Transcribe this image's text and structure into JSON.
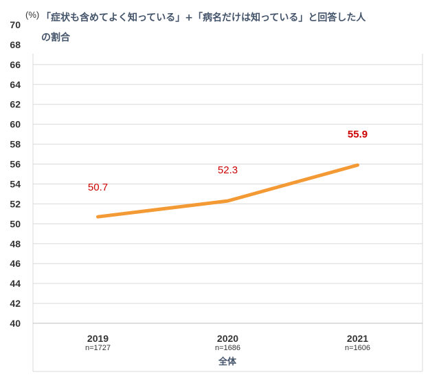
{
  "chart_data": {
    "type": "line",
    "unit": "(%)",
    "title_line1": "「症状も含めてよく知っている」+「病名だけは知っている」と回答した人",
    "title_line2": "の割合",
    "categories": [
      "2019",
      "2020",
      "2021"
    ],
    "sample_sizes": [
      "n=1727",
      "n=1686",
      "n=1606"
    ],
    "group_label": "全体",
    "series": [
      {
        "values": [
          50.7,
          52.3,
          55.9
        ],
        "data_labels": [
          "50.7",
          "52.3",
          "55.9"
        ],
        "color": "#f39a35"
      }
    ],
    "ylim": [
      40,
      70
    ],
    "yticks": [
      "40",
      "42",
      "44",
      "46",
      "48",
      "50",
      "52",
      "54",
      "56",
      "58",
      "60",
      "62",
      "64",
      "66",
      "68",
      "70"
    ],
    "grid": true,
    "legend": "none",
    "label_color": "#cc0000"
  }
}
